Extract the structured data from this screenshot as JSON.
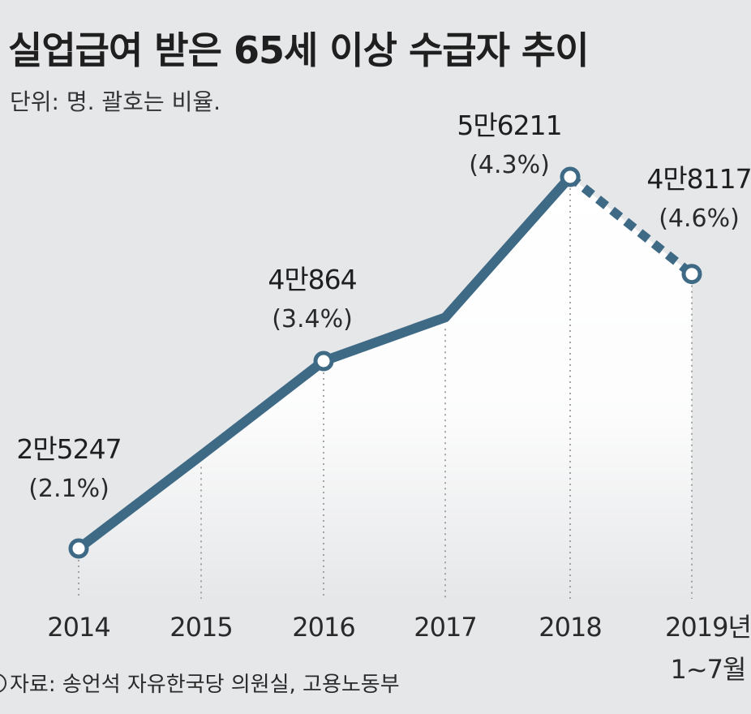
{
  "header": {
    "title": "실업급여 받은 65세 이상 수급자 추이",
    "unit_note": "단위: 명. 괄호는 비율."
  },
  "chart_data": {
    "type": "line",
    "title": "실업급여 받은 65세 이상 수급자 추이",
    "subtitle": "단위: 명. 괄호는 비율.",
    "categories": [
      "2014",
      "2015",
      "2016",
      "2017",
      "2018",
      "2019년"
    ],
    "category_sublabels": [
      "",
      "",
      "",
      "",
      "",
      "1~7월"
    ],
    "series": [
      {
        "values": [
          25247,
          33000,
          40864,
          44500,
          56211,
          48117
        ],
        "value_labels": [
          "2만5247",
          "",
          "4만864",
          "",
          "5만6211",
          "4만8117"
        ],
        "percent_labels": [
          "(2.1%)",
          "",
          "(3.4%)",
          "",
          "(4.3%)",
          "(4.6%)"
        ],
        "marked_points": [
          true,
          false,
          true,
          false,
          true,
          true
        ],
        "last_segment_style": "dashed"
      }
    ],
    "ylim": [
      20000,
      62000
    ],
    "grid": "vertical dotted lines at each point",
    "line_color": "#3f6a86",
    "area_fill": "white gradient below line"
  },
  "source": "자료: 송언석 자유한국당 의원실, 고용노동부"
}
